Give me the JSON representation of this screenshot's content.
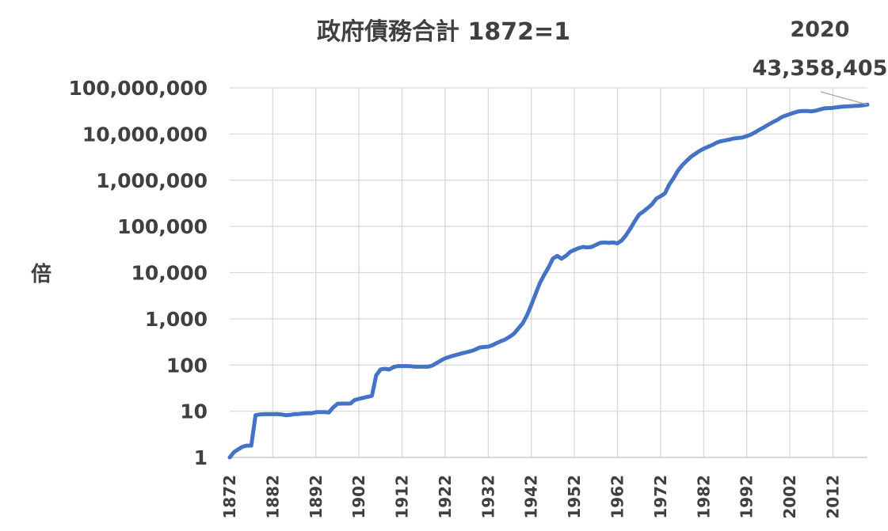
{
  "chart_data": {
    "type": "line",
    "title": "政府債務合計 1872=1",
    "ylabel": "倍",
    "xlabel": "",
    "y_scale": "log",
    "ylim": [
      1,
      100000000
    ],
    "xlim": [
      1872,
      2020
    ],
    "grid": true,
    "y_ticks": [
      "1",
      "10",
      "100",
      "1,000",
      "10,000",
      "100,000",
      "1,000,000",
      "10,000,000",
      "100,000,000"
    ],
    "x_ticks": [
      "1872",
      "1882",
      "1892",
      "1902",
      "1912",
      "1922",
      "1932",
      "1942",
      "1952",
      "1962",
      "1972",
      "1982",
      "1992",
      "2002",
      "2012"
    ],
    "annotation": {
      "year": "2020",
      "value": "43,358,405"
    },
    "series": [
      {
        "color": "#4472c4",
        "x": [
          1872,
          1873,
          1874,
          1875,
          1876,
          1877,
          1878,
          1879,
          1880,
          1881,
          1882,
          1883,
          1884,
          1885,
          1886,
          1887,
          1888,
          1889,
          1890,
          1891,
          1892,
          1893,
          1894,
          1895,
          1896,
          1897,
          1898,
          1899,
          1900,
          1901,
          1902,
          1903,
          1904,
          1905,
          1906,
          1907,
          1908,
          1909,
          1910,
          1911,
          1912,
          1913,
          1914,
          1915,
          1916,
          1917,
          1918,
          1919,
          1920,
          1921,
          1922,
          1923,
          1924,
          1925,
          1926,
          1927,
          1928,
          1929,
          1930,
          1931,
          1932,
          1933,
          1934,
          1935,
          1936,
          1937,
          1938,
          1939,
          1940,
          1941,
          1942,
          1943,
          1944,
          1945,
          1946,
          1947,
          1948,
          1949,
          1950,
          1951,
          1952,
          1953,
          1954,
          1955,
          1956,
          1957,
          1958,
          1959,
          1960,
          1961,
          1962,
          1963,
          1964,
          1965,
          1966,
          1967,
          1968,
          1969,
          1970,
          1971,
          1972,
          1973,
          1974,
          1975,
          1976,
          1977,
          1978,
          1979,
          1980,
          1981,
          1982,
          1983,
          1984,
          1985,
          1986,
          1987,
          1988,
          1989,
          1990,
          1991,
          1992,
          1993,
          1994,
          1995,
          1996,
          1997,
          1998,
          1999,
          2000,
          2001,
          2002,
          2003,
          2004,
          2005,
          2006,
          2007,
          2008,
          2009,
          2010,
          2011,
          2012,
          2013,
          2014,
          2015,
          2016,
          2017,
          2018,
          2019,
          2020
        ],
        "values": [
          1,
          1.3,
          1.5,
          1.7,
          1.8,
          1.8,
          8.2,
          8.5,
          8.6,
          8.6,
          8.6,
          8.7,
          8.5,
          8.2,
          8.3,
          8.6,
          8.7,
          8.9,
          9,
          9,
          9.5,
          9.6,
          9.6,
          9.4,
          12,
          14.5,
          14.6,
          14.6,
          14.7,
          17.5,
          18.5,
          19.5,
          20.5,
          21.5,
          60,
          80,
          83,
          80,
          90,
          95,
          95,
          95,
          94,
          92,
          92,
          92,
          92,
          97,
          110,
          125,
          140,
          150,
          160,
          170,
          180,
          190,
          200,
          215,
          240,
          245,
          250,
          270,
          300,
          330,
          360,
          410,
          480,
          620,
          800,
          1200,
          2000,
          3500,
          6000,
          9000,
          13000,
          20000,
          23000,
          20000,
          23000,
          28000,
          31000,
          34000,
          36000,
          35000,
          36000,
          40000,
          44000,
          45000,
          44000,
          45000,
          43000,
          50000,
          65000,
          90000,
          130000,
          180000,
          210000,
          250000,
          300000,
          400000,
          450000,
          520000,
          800000,
          1100000,
          1600000,
          2100000,
          2600000,
          3200000,
          3700000,
          4300000,
          4800000,
          5300000,
          5800000,
          6500000,
          7000000,
          7300000,
          7600000,
          8000000,
          8200000,
          8400000,
          9000000,
          9800000,
          11000000,
          12500000,
          14000000,
          16000000,
          18000000,
          20000000,
          23000000,
          25000000,
          27000000,
          29000000,
          31000000,
          31500000,
          31500000,
          31000000,
          32000000,
          34000000,
          36000000,
          36500000,
          37000000,
          38000000,
          39000000,
          39500000,
          40000000,
          40500000,
          41000000,
          42000000,
          43358405
        ]
      }
    ]
  }
}
